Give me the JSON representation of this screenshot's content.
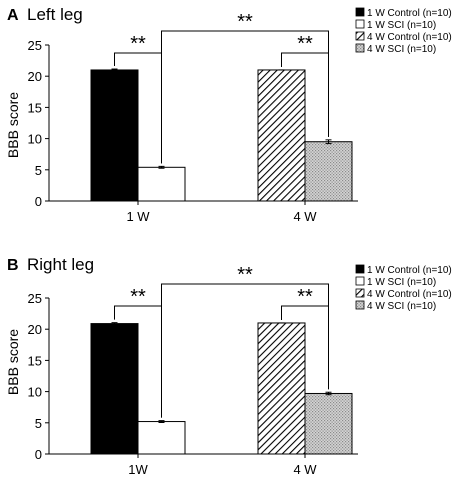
{
  "chart_data": [
    {
      "panel_label": "A",
      "title": "Left leg",
      "type": "bar",
      "ylabel": "BBB  score",
      "ylim": [
        0,
        25
      ],
      "yticks": [
        0,
        5,
        10,
        15,
        20,
        25
      ],
      "categories": [
        "1 W",
        "4 W"
      ],
      "series": [
        {
          "name": "1 W Control (n=10)",
          "fill": "solid-black",
          "color": "#000000",
          "values": [
            21.0,
            null
          ],
          "errors": [
            0.15,
            null
          ]
        },
        {
          "name": "1 W SCI (n=10)",
          "fill": "white",
          "color": "#ffffff",
          "values": [
            5.4,
            null
          ],
          "errors": [
            0.15,
            null
          ]
        },
        {
          "name": "4 W Control (n=10)",
          "fill": "diagonal-hatch",
          "color": "#000000",
          "values": [
            null,
            21.0
          ],
          "errors": [
            null,
            0.0
          ]
        },
        {
          "name": "4 W SCI (n=10)",
          "fill": "gray-dots",
          "color": "#b8b8b8",
          "values": [
            null,
            9.5
          ],
          "errors": [
            null,
            0.3
          ]
        }
      ],
      "significance": [
        {
          "label": "**",
          "between": "1 W Control vs 1 W SCI"
        },
        {
          "label": "**",
          "between": "4 W Control vs 4 W SCI"
        },
        {
          "label": "**",
          "between": "1 W SCI vs 4 W SCI"
        }
      ],
      "legend": "top-right",
      "grid": false
    },
    {
      "panel_label": "B",
      "title": "Right leg",
      "type": "bar",
      "ylabel": "BBB  score",
      "ylim": [
        0,
        25
      ],
      "yticks": [
        0,
        5,
        10,
        15,
        20,
        25
      ],
      "categories": [
        "1W",
        "4 W"
      ],
      "series": [
        {
          "name": "1 W Control (n=10)",
          "fill": "solid-black",
          "color": "#000000",
          "values": [
            20.9,
            null
          ],
          "errors": [
            0.15,
            null
          ]
        },
        {
          "name": "1 W SCI (n=10)",
          "fill": "white",
          "color": "#ffffff",
          "values": [
            5.2,
            null
          ],
          "errors": [
            0.15,
            null
          ]
        },
        {
          "name": "4 W Control (n=10)",
          "fill": "diagonal-hatch",
          "color": "#000000",
          "values": [
            null,
            21.0
          ],
          "errors": [
            null,
            0.0
          ]
        },
        {
          "name": "4 W SCI (n=10)",
          "fill": "gray-dots",
          "color": "#b8b8b8",
          "values": [
            null,
            9.7
          ],
          "errors": [
            null,
            0.2
          ]
        }
      ],
      "significance": [
        {
          "label": "**",
          "between": "1 W Control vs 1 W SCI"
        },
        {
          "label": "**",
          "between": "4 W Control vs 4 W SCI"
        },
        {
          "label": "**",
          "between": "1 W SCI vs 4 W SCI"
        }
      ],
      "legend": "top-right",
      "grid": false
    }
  ]
}
